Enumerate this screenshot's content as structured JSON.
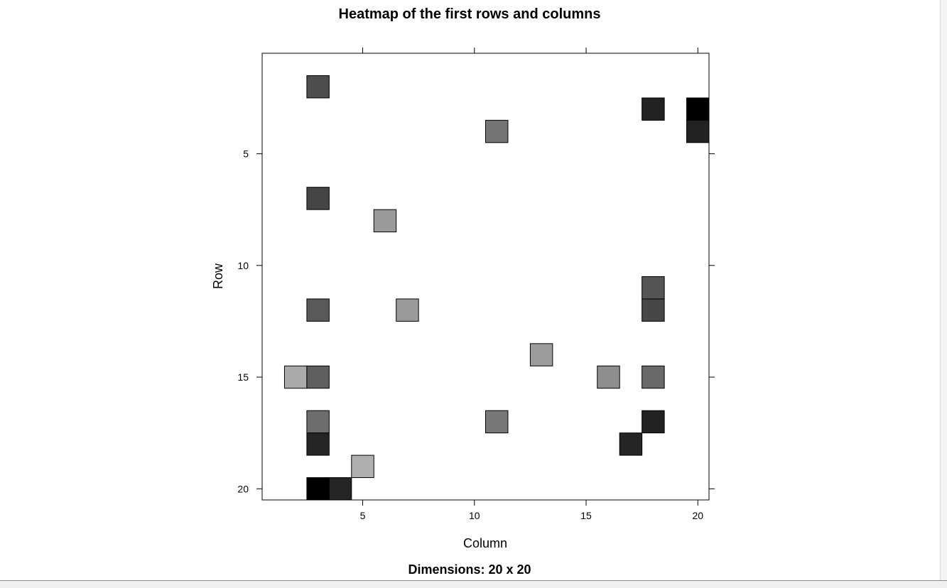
{
  "chart_data": {
    "type": "heatmap",
    "title": "Heatmap of the first rows and columns",
    "subtitle": "Dimensions: 20 x 20",
    "xlabel": "Column",
    "ylabel": "Row",
    "xlim": [
      0.5,
      20.5
    ],
    "ylim": [
      0.5,
      20.5
    ],
    "y_reversed": true,
    "xticks": [
      5,
      10,
      15,
      20
    ],
    "yticks": [
      5,
      10,
      15,
      20
    ],
    "grid": false,
    "colorscale": "grayscale",
    "cells": [
      {
        "row": 2,
        "col": 3,
        "color": "#4d4d4d"
      },
      {
        "row": 3,
        "col": 18,
        "color": "#222222"
      },
      {
        "row": 3,
        "col": 20,
        "color": "#000000"
      },
      {
        "row": 4,
        "col": 11,
        "color": "#747474"
      },
      {
        "row": 4,
        "col": 20,
        "color": "#222222"
      },
      {
        "row": 7,
        "col": 3,
        "color": "#454545"
      },
      {
        "row": 8,
        "col": 6,
        "color": "#9b9b9b"
      },
      {
        "row": 11,
        "col": 18,
        "color": "#555555"
      },
      {
        "row": 12,
        "col": 3,
        "color": "#595959"
      },
      {
        "row": 12,
        "col": 7,
        "color": "#9a9a9a"
      },
      {
        "row": 12,
        "col": 18,
        "color": "#474747"
      },
      {
        "row": 14,
        "col": 13,
        "color": "#9c9c9c"
      },
      {
        "row": 15,
        "col": 2,
        "color": "#aaaaaa"
      },
      {
        "row": 15,
        "col": 3,
        "color": "#5e5e5e"
      },
      {
        "row": 15,
        "col": 16,
        "color": "#8e8e8e"
      },
      {
        "row": 15,
        "col": 18,
        "color": "#6a6a6a"
      },
      {
        "row": 17,
        "col": 3,
        "color": "#6d6d6d"
      },
      {
        "row": 17,
        "col": 11,
        "color": "#787878"
      },
      {
        "row": 17,
        "col": 18,
        "color": "#222222"
      },
      {
        "row": 18,
        "col": 3,
        "color": "#252525"
      },
      {
        "row": 18,
        "col": 17,
        "color": "#252525"
      },
      {
        "row": 19,
        "col": 5,
        "color": "#b0b0b0"
      },
      {
        "row": 20,
        "col": 3,
        "color": "#000000"
      },
      {
        "row": 20,
        "col": 4,
        "color": "#252525"
      }
    ]
  }
}
